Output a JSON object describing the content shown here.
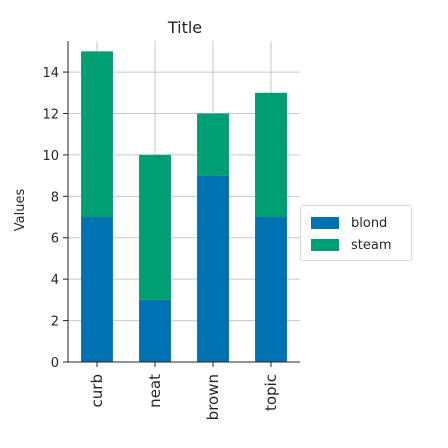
{
  "chart_data": {
    "type": "bar",
    "stacked": true,
    "title": "Title",
    "xlabel": "",
    "ylabel": "Values",
    "categories": [
      "curb",
      "neat",
      "brown",
      "topic"
    ],
    "series": [
      {
        "name": "blond",
        "color": "#0072b2",
        "values": [
          7,
          3,
          9,
          7
        ]
      },
      {
        "name": "steam",
        "color": "#009e73",
        "values": [
          8,
          7,
          3,
          6
        ]
      }
    ],
    "ylim": [
      0,
      15.5
    ],
    "yticks": [
      0,
      2,
      4,
      6,
      8,
      10,
      12,
      14
    ],
    "grid": true,
    "legend_position": "right"
  }
}
